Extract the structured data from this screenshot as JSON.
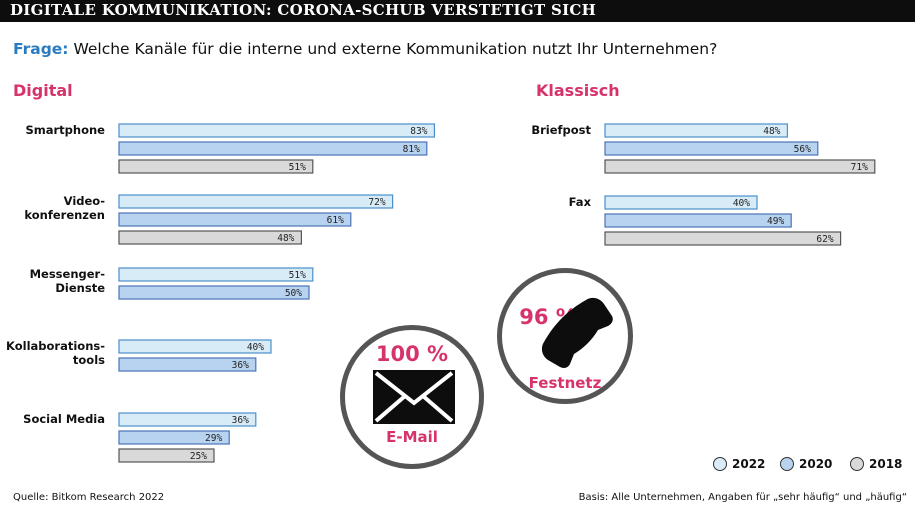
{
  "header": {
    "title": "DIGITALE KOMMUNIKATION: CORONA-SCHUB VERSTETIGT SICH"
  },
  "question": {
    "prefix": "Frage:",
    "text": "Welche Kanäle für die interne und externe Kommunikation nutzt Ihr Unternehmen?"
  },
  "sections": {
    "digital": "Digital",
    "classic": "Klassisch"
  },
  "colors": {
    "y2022": "#d8ecf8",
    "y2020": "#b8d3ef",
    "y2018": "#d9d9d9",
    "accent": "#d6336c",
    "question": "#2a7bc0"
  },
  "chart_data": [
    {
      "type": "bar",
      "orientation": "horizontal",
      "title": "Digital",
      "categories": [
        [
          "Smartphone"
        ],
        [
          "Video-",
          "konferenzen"
        ],
        [
          "Messenger-",
          "Dienste"
        ],
        [
          "Kollaborations-",
          "tools"
        ],
        [
          "Social Media"
        ]
      ],
      "series": [
        {
          "name": "2022",
          "values": [
            83,
            72,
            51,
            40,
            36
          ]
        },
        {
          "name": "2020",
          "values": [
            81,
            61,
            50,
            36,
            29
          ]
        },
        {
          "name": "2018",
          "values": [
            51,
            48,
            null,
            null,
            25
          ]
        }
      ],
      "xlim": [
        0,
        100
      ],
      "unit": "%",
      "grid": false
    },
    {
      "type": "bar",
      "orientation": "horizontal",
      "title": "Klassisch",
      "categories": [
        [
          "Briefpost"
        ],
        [
          "Fax"
        ]
      ],
      "series": [
        {
          "name": "2022",
          "values": [
            48,
            40
          ]
        },
        {
          "name": "2020",
          "values": [
            56,
            49
          ]
        },
        {
          "name": "2018",
          "values": [
            71,
            62
          ]
        }
      ],
      "xlim": [
        0,
        100
      ],
      "unit": "%",
      "grid": false
    }
  ],
  "badges": {
    "email": {
      "value": "100 %",
      "label": "E-Mail",
      "icon": "envelope-icon"
    },
    "phone": {
      "value": "96 %",
      "label": "Festnetz",
      "icon": "phone-icon"
    }
  },
  "legend": {
    "items": [
      "2022",
      "2020",
      "2018"
    ],
    "placement": "bottom-right"
  },
  "footer": {
    "source": "Quelle: Bitkom Research 2022",
    "basis": "Basis: Alle Unternehmen, Angaben für „sehr häufig“ und „häufig“"
  }
}
